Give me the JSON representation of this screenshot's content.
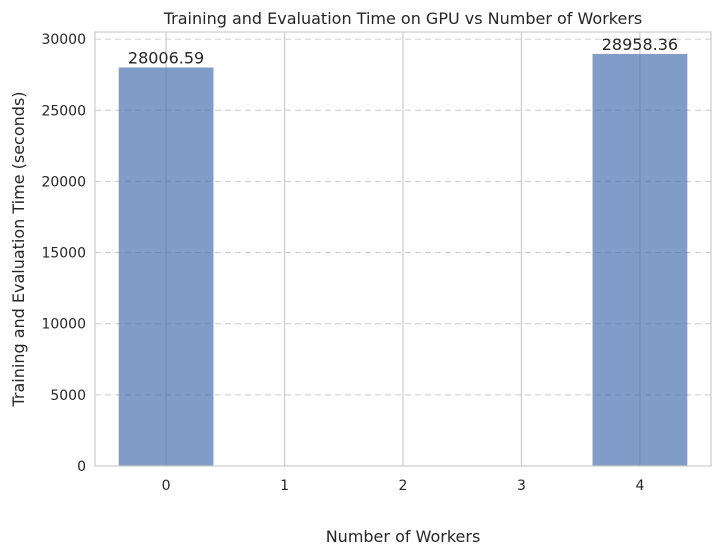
{
  "chart_data": {
    "type": "bar",
    "title": "Training and Evaluation Time on GPU vs Number of Workers",
    "xlabel": "Number of Workers",
    "ylabel": "Training and Evaluation Time (seconds)",
    "categories": [
      "0",
      "1",
      "2",
      "3",
      "4"
    ],
    "x": [
      0,
      1,
      2,
      3,
      4
    ],
    "bars": [
      {
        "x": 0,
        "value": 28006.59,
        "label": "28006.59"
      },
      {
        "x": 4,
        "value": 28958.36,
        "label": "28958.36"
      }
    ],
    "yticks": [
      "0",
      "5000",
      "10000",
      "15000",
      "20000",
      "25000",
      "30000"
    ],
    "ylim": [
      0,
      30500
    ],
    "xlim": [
      -0.6,
      4.6
    ],
    "bar_width": 0.8,
    "grid": true,
    "colors": {
      "bar": "#4c72b0",
      "grid": "#cccccc",
      "axis_edge": "#cccccc",
      "text": "#262626"
    }
  }
}
